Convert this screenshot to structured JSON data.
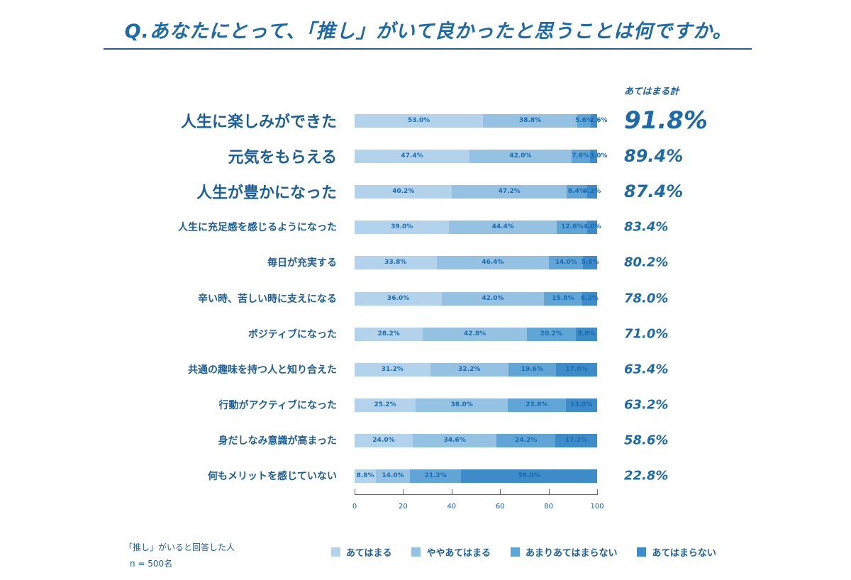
{
  "title": "Q.あなたにとって、「推し」がいて良かったと思うことは何ですか。",
  "total_header": "あてはまる計",
  "note": {
    "line1": "「推し」がいると回答した人",
    "line2": "n = 500名"
  },
  "colors": [
    "#b3d3ec",
    "#95c1e3",
    "#61a4d6",
    "#3d8bc8"
  ],
  "chart_data": {
    "type": "bar",
    "orientation": "horizontal-stacked-100",
    "xlim": [
      0,
      100
    ],
    "xticks": [
      "0",
      "20",
      "40",
      "60",
      "80",
      "100"
    ],
    "legend": [
      "あてはまる",
      "ややあてはまる",
      "あまりあてはまらない",
      "あてはまらない"
    ],
    "legend_placement": "bottom",
    "rows": [
      {
        "label": "人生に楽しみができた",
        "values": [
          53.0,
          38.8,
          5.6,
          2.6
        ],
        "labels": [
          "53.0%",
          "38.8%",
          "5.6%",
          "2.6%"
        ],
        "total": "91.8%"
      },
      {
        "label": "元気をもらえる",
        "values": [
          47.4,
          42.0,
          7.6,
          3.0
        ],
        "labels": [
          "47.4%",
          "42.0%",
          "7.6%",
          "3.0%"
        ],
        "total": "89.4%"
      },
      {
        "label": "人生が豊かになった",
        "values": [
          40.2,
          47.2,
          8.4,
          4.2
        ],
        "labels": [
          "40.2%",
          "47.2%",
          "8.4%",
          "4.2%"
        ],
        "total": "87.4%"
      },
      {
        "label": "人生に充足感を感じるようになった",
        "values": [
          39.0,
          44.4,
          12.6,
          4.0
        ],
        "labels": [
          "39.0%",
          "44.4%",
          "12.6%",
          "4.0%"
        ],
        "total": "83.4%"
      },
      {
        "label": "毎日が充実する",
        "values": [
          33.8,
          46.4,
          14.0,
          5.8
        ],
        "labels": [
          "33.8%",
          "46.4%",
          "14.0%",
          "5.8%"
        ],
        "total": "80.2%"
      },
      {
        "label": "辛い時、苦しい時に支えになる",
        "values": [
          36.0,
          42.0,
          15.8,
          6.2
        ],
        "labels": [
          "36.0%",
          "42.0%",
          "15.8%",
          "6.2%"
        ],
        "total": "78.0%"
      },
      {
        "label": "ポジティブになった",
        "values": [
          28.2,
          42.8,
          20.2,
          8.8
        ],
        "labels": [
          "28.2%",
          "42.8%",
          "20.2%",
          "8.8%"
        ],
        "total": "71.0%"
      },
      {
        "label": "共通の趣味を持つ人と知り合えた",
        "values": [
          31.2,
          32.2,
          19.6,
          17.0
        ],
        "labels": [
          "31.2%",
          "32.2%",
          "19.6%",
          "17.0%"
        ],
        "total": "63.4%"
      },
      {
        "label": "行動がアクティブになった",
        "values": [
          25.2,
          38.0,
          23.8,
          13.0
        ],
        "labels": [
          "25.2%",
          "38.0%",
          "23.8%",
          "13.0%"
        ],
        "total": "63.2%"
      },
      {
        "label": "身だしなみ意識が高まった",
        "values": [
          24.0,
          34.6,
          24.2,
          17.2
        ],
        "labels": [
          "24.0%",
          "34.6%",
          "24.2%",
          "17.2%"
        ],
        "total": "58.6%"
      },
      {
        "label": "何もメリットを感じていない",
        "values": [
          8.8,
          14.0,
          21.2,
          56.0
        ],
        "labels": [
          "8.8%",
          "14.0%",
          "21.2%",
          "56.0%"
        ],
        "total": "22.8%"
      }
    ]
  }
}
